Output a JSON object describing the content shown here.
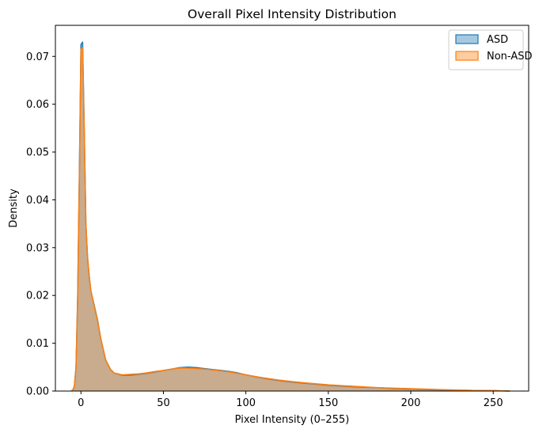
{
  "chart_data": {
    "type": "area",
    "title": "Overall Pixel Intensity Distribution",
    "xlabel": "Pixel Intensity (0–255)",
    "ylabel": "Density",
    "xlim": [
      -15.5,
      271.5
    ],
    "ylim": [
      0,
      0.0765
    ],
    "xticks": [
      0,
      50,
      100,
      150,
      200,
      250
    ],
    "xtick_labels": [
      "0",
      "50",
      "100",
      "150",
      "200",
      "250"
    ],
    "yticks": [
      0,
      0.01,
      0.02,
      0.03,
      0.04,
      0.05,
      0.06,
      0.07
    ],
    "ytick_labels": [
      "0.00",
      "0.01",
      "0.02",
      "0.03",
      "0.04",
      "0.05",
      "0.06",
      "0.07"
    ],
    "grid": false,
    "legend_position": "top-right",
    "series": [
      {
        "name": "ASD",
        "color": "#1f77b4",
        "x": [
          -6,
          -5,
          -4,
          -3,
          -2,
          -1,
          0,
          1,
          2,
          3,
          4,
          5,
          6,
          8,
          10,
          12,
          15,
          18,
          20,
          25,
          30,
          35,
          40,
          45,
          50,
          55,
          60,
          65,
          70,
          75,
          80,
          85,
          90,
          95,
          100,
          110,
          120,
          130,
          140,
          150,
          160,
          170,
          180,
          190,
          200,
          210,
          220,
          230,
          240,
          250,
          255,
          260
        ],
        "y": [
          0.0,
          0.0002,
          0.001,
          0.005,
          0.02,
          0.045,
          0.0725,
          0.073,
          0.055,
          0.035,
          0.028,
          0.024,
          0.021,
          0.018,
          0.015,
          0.011,
          0.0065,
          0.0045,
          0.0038,
          0.0033,
          0.0033,
          0.0035,
          0.0037,
          0.004,
          0.0043,
          0.0046,
          0.0049,
          0.005,
          0.0049,
          0.0047,
          0.0045,
          0.0043,
          0.0041,
          0.0038,
          0.0034,
          0.0027,
          0.0022,
          0.0018,
          0.0015,
          0.0012,
          0.001,
          0.0008,
          0.0007,
          0.0005,
          0.0004,
          0.0003,
          0.0002,
          0.0002,
          0.0001,
          0.0001,
          5e-05,
          0.0
        ]
      },
      {
        "name": "Non-ASD",
        "color": "#ff7f0e",
        "x": [
          -6,
          -5,
          -4,
          -3,
          -2,
          -1,
          0,
          1,
          2,
          3,
          4,
          5,
          6,
          8,
          10,
          12,
          15,
          18,
          20,
          25,
          30,
          35,
          40,
          45,
          50,
          55,
          60,
          65,
          70,
          75,
          80,
          85,
          90,
          95,
          100,
          110,
          120,
          130,
          140,
          150,
          160,
          170,
          180,
          190,
          200,
          210,
          220,
          230,
          240,
          250,
          255,
          260
        ],
        "y": [
          0.0,
          0.0002,
          0.001,
          0.005,
          0.019,
          0.044,
          0.0715,
          0.0718,
          0.054,
          0.035,
          0.028,
          0.0242,
          0.021,
          0.0178,
          0.0148,
          0.011,
          0.0065,
          0.0045,
          0.0038,
          0.0034,
          0.0035,
          0.0036,
          0.0038,
          0.0041,
          0.0043,
          0.0046,
          0.0048,
          0.0048,
          0.0047,
          0.0046,
          0.0044,
          0.0042,
          0.004,
          0.0037,
          0.0034,
          0.0028,
          0.0023,
          0.0019,
          0.0016,
          0.0013,
          0.0011,
          0.0009,
          0.0007,
          0.0006,
          0.0005,
          0.0004,
          0.0003,
          0.0002,
          0.0001,
          0.0001,
          5e-05,
          0.0
        ]
      }
    ]
  }
}
